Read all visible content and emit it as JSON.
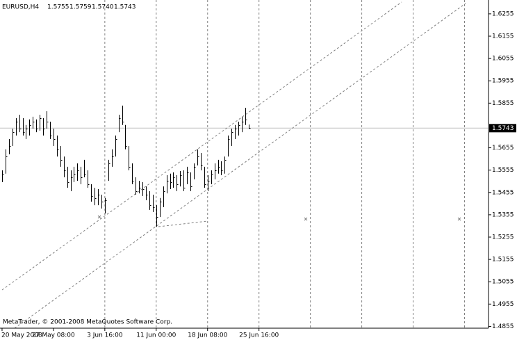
{
  "chart_data": {
    "type": "ohlc",
    "symbol": "EURUSD,H4",
    "header_prices": [
      "1.5755",
      "1.5759",
      "1.5740",
      "1.5743"
    ],
    "copyright": "MetaTrader, © 2001-2008 MetaQuotes Software Corp.",
    "color": "#000000",
    "grid_color": "#808080",
    "high": [
      1.5554,
      1.5648,
      1.5694,
      1.5741,
      1.5788,
      1.5803,
      1.5788,
      1.5757,
      1.5782,
      1.5794,
      1.5782,
      1.5803,
      1.5788,
      1.5819,
      1.5772,
      1.5741,
      1.571,
      1.5663,
      1.5616,
      1.557,
      1.5554,
      1.557,
      1.5585,
      1.557,
      1.5601,
      1.5554,
      1.5492,
      1.5476,
      1.547,
      1.5445,
      1.543,
      1.5601,
      1.5648,
      1.571,
      1.5803,
      1.5844,
      1.5757,
      1.5663,
      1.5585,
      1.5523,
      1.5507,
      1.5501,
      1.5482,
      1.5461,
      1.5445,
      1.5398,
      1.543,
      1.5482,
      1.5532,
      1.5539,
      1.5545,
      1.5532,
      1.5551,
      1.5554,
      1.557,
      1.5545,
      1.5585,
      1.5648,
      1.5632,
      1.557,
      1.5532,
      1.5554,
      1.5585,
      1.5601,
      1.5595,
      1.5616,
      1.571,
      1.5741,
      1.5757,
      1.5772,
      1.5794,
      1.5834,
      1.5759
    ],
    "low": [
      1.5501,
      1.5539,
      1.5626,
      1.5663,
      1.571,
      1.5725,
      1.571,
      1.5694,
      1.571,
      1.5741,
      1.5725,
      1.5732,
      1.571,
      1.5741,
      1.5694,
      1.5663,
      1.5616,
      1.557,
      1.5523,
      1.5476,
      1.5461,
      1.5501,
      1.5507,
      1.5492,
      1.5523,
      1.5476,
      1.5414,
      1.5398,
      1.5398,
      1.5383,
      1.5361,
      1.5507,
      1.557,
      1.5616,
      1.5725,
      1.5757,
      1.5648,
      1.5554,
      1.5492,
      1.5445,
      1.5451,
      1.5439,
      1.542,
      1.5377,
      1.5367,
      1.5302,
      1.5345,
      1.5389,
      1.5451,
      1.547,
      1.5476,
      1.5461,
      1.5482,
      1.5461,
      1.5492,
      1.5461,
      1.5514,
      1.5576,
      1.5554,
      1.5476,
      1.5461,
      1.5492,
      1.5514,
      1.5539,
      1.5532,
      1.5539,
      1.5616,
      1.5663,
      1.5694,
      1.571,
      1.5725,
      1.5757,
      1.574
    ],
    "close": [
      1.5539,
      1.5616,
      1.5663,
      1.5725,
      1.5772,
      1.5741,
      1.5725,
      1.5741,
      1.5757,
      1.5772,
      1.5741,
      1.5788,
      1.5741,
      1.5772,
      1.571,
      1.5694,
      1.5648,
      1.5601,
      1.5554,
      1.5501,
      1.5523,
      1.5539,
      1.5554,
      1.5523,
      1.5539,
      1.5492,
      1.5439,
      1.543,
      1.5445,
      1.5414,
      1.542,
      1.5585,
      1.5616,
      1.5694,
      1.5788,
      1.5772,
      1.5663,
      1.557,
      1.5507,
      1.5461,
      1.5476,
      1.547,
      1.5445,
      1.5398,
      1.5389,
      1.5345,
      1.5414,
      1.5461,
      1.5507,
      1.5501,
      1.5523,
      1.5492,
      1.5532,
      1.5476,
      1.5545,
      1.5482,
      1.557,
      1.5616,
      1.5576,
      1.5492,
      1.5507,
      1.5539,
      1.5554,
      1.557,
      1.5554,
      1.5601,
      1.5694,
      1.5725,
      1.5741,
      1.5757,
      1.5772,
      1.5782,
      1.5743
    ],
    "current_price": 1.5743,
    "xlim": [
      -0.6,
      142
    ],
    "xticks": [
      {
        "value": 0,
        "label": "20 May 2008"
      },
      {
        "value": 15,
        "label": "27 May 08:00"
      },
      {
        "value": 30,
        "label": "3 Jun 16:00"
      },
      {
        "value": 45,
        "label": "11 Jun 00:00"
      },
      {
        "value": 60,
        "label": "18 Jun 08:00"
      },
      {
        "value": 75,
        "label": "25 Jun 16:00"
      }
    ],
    "xgrid": [
      30,
      45,
      60,
      75,
      90,
      105,
      120,
      135
    ],
    "ylim": [
      1.4847,
      1.6317
    ],
    "yticks": [
      1.6255,
      1.6155,
      1.6055,
      1.5955,
      1.5855,
      1.5655,
      1.5555,
      1.5455,
      1.5355,
      1.5255,
      1.5155,
      1.5055,
      1.4955,
      1.4855
    ]
  }
}
